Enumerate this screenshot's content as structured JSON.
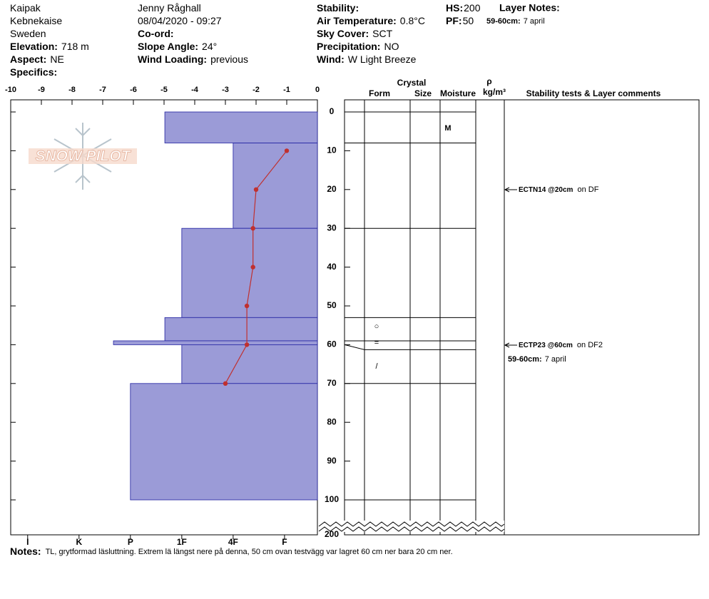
{
  "header": {
    "columns": [
      [
        {
          "value": "Kaipak"
        },
        {
          "value": "Kebnekaise"
        },
        {
          "value": "Sweden"
        },
        {
          "label": "Elevation:",
          "value": "718 m"
        },
        {
          "label": "Aspect:",
          "value": "NE"
        },
        {
          "label": "Specifics:"
        }
      ],
      [
        {
          "value": "Jenny Råghall"
        },
        {
          "value": "08/04/2020 - 09:27"
        },
        {
          "label": "Co-ord:"
        },
        {
          "label": "Slope Angle:",
          "value": "24°"
        },
        {
          "label": "Wind Loading:",
          "value": "previous"
        }
      ],
      [
        {
          "label": "Stability:"
        },
        {
          "label": "Air Temperature:",
          "value": "0.8°C"
        },
        {
          "label": "Sky Cover:",
          "value": "SCT"
        },
        {
          "label": "Precipitation:",
          "value": "NO"
        },
        {
          "label": "Wind:",
          "value": "W Light Breeze"
        }
      ],
      [
        {
          "label": "HS:",
          "value": "200"
        },
        {
          "label": "PF:",
          "value": "50"
        }
      ]
    ],
    "layer_notes": {
      "title": "Layer Notes:",
      "depth": "59-60cm:",
      "text": "7 april"
    }
  },
  "logo": "SNOW PILOT",
  "chart_data": [
    {
      "type": "bar",
      "color": "#9b9bd7",
      "xlim": [
        6.33,
        0.36
      ],
      "xticks": [
        {
          "value": 6,
          "label": "I"
        },
        {
          "value": 5,
          "label": "K"
        },
        {
          "value": 4,
          "label": "P"
        },
        {
          "value": 3,
          "label": "1F"
        },
        {
          "value": 2,
          "label": "4F"
        },
        {
          "value": 1,
          "label": "F"
        }
      ],
      "ylim": [
        0,
        100
      ],
      "yticks": [
        0,
        10,
        20,
        30,
        40,
        50,
        60,
        70,
        80,
        90,
        100
      ],
      "break_tick": 200,
      "top": [
        0,
        8,
        30,
        53,
        59,
        60,
        70
      ],
      "bottom": [
        8,
        30,
        53,
        59,
        60,
        70,
        100
      ],
      "values": [
        3.33,
        2,
        3,
        3.33,
        4.33,
        3,
        4
      ]
    },
    {
      "type": "line",
      "color": "#c0302f",
      "xlim": [
        -10,
        0
      ],
      "xticks": [
        -10,
        -9,
        -8,
        -7,
        -6,
        -5,
        -4,
        -3,
        -2,
        -1,
        0
      ],
      "ylim": [
        0,
        100
      ],
      "depths": [
        10,
        20,
        30,
        40,
        50,
        60,
        70
      ],
      "values": [
        -1,
        -2,
        -2.1,
        -2.1,
        -2.3,
        -2.3,
        -3
      ]
    }
  ],
  "stratigraphy": {
    "headers": {
      "crystal": "Crystal",
      "form": "Form",
      "size": "Size",
      "moisture": "Moisture",
      "rho": "ρ",
      "density": "kg/m³",
      "comments": "Stability tests & Layer comments"
    },
    "symbols": [
      "M",
      "○",
      "=",
      "/"
    ],
    "stability_comments": [
      {
        "test": "ECTN14 @20cm",
        "layer": "on DF"
      },
      {
        "test": "ECTP23 @60cm",
        "layer": "on DF2"
      }
    ],
    "layer_comment": {
      "depth": "59-60cm:",
      "text": "7 april"
    }
  },
  "notes": {
    "label": "Notes:",
    "text": "TL, grytformad läsluttning. Extrem lä längst nere på denna, 50 cm ovan testvägg var lagret 60 cm ner bara 20 cm ner."
  }
}
